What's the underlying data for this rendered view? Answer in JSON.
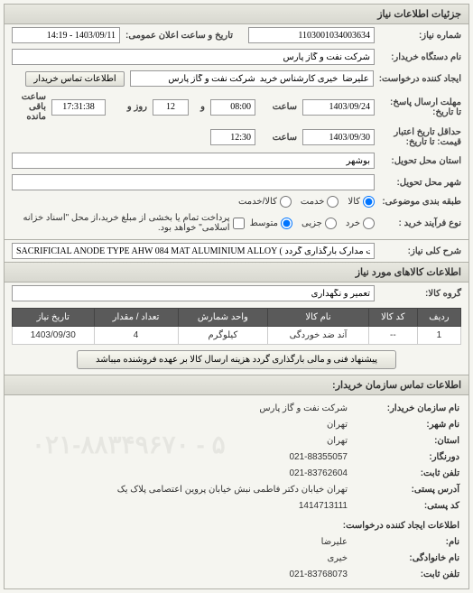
{
  "panel_title": "جزئیات اطلاعات نیاز",
  "fields": {
    "need_number_label": "شماره نیاز:",
    "need_number": "1103001034003634",
    "announce_label": "تاریخ و ساعت اعلان عمومی:",
    "announce_value": "1403/09/11 - 14:19",
    "device_name_label": "نام دستگاه خریدار:",
    "device_name": "شرکت نفت و گاز پارس",
    "creator_label": "ایجاد کننده درخواست:",
    "creator_value": "علیرضا  خیری کارشناس خرید  شرکت نفت و گاز پارس",
    "contact_btn": "اطلاعات تماس خریدار",
    "deadline_label": "مهلت ارسال پاسخ:\nتا تاریخ:",
    "deadline_date": "1403/09/24",
    "saat_label": "ساعت",
    "deadline_time": "08:00",
    "va_label": "و",
    "days_value": "12",
    "rooz_label": "روز و",
    "remaining_time": "17:31:38",
    "remaining_label": "ساعت باقی مانده",
    "price_validity_label": "حداقل تاریخ اعتبار\nقیمت: تا تاریخ:",
    "price_validity_date": "1403/09/30",
    "price_validity_time": "12:30",
    "province_label": "استان محل تحویل:",
    "province_value": "بوشهر",
    "city_label": "شهر محل تحویل:",
    "city_value": "",
    "category_label": "طبقه بندی موضوعی:",
    "radio_kala": "کالا",
    "radio_khedmat": "خدمت",
    "radio_kala_khedmat": "کالا/خدمت",
    "buy_type_label": "نوع فرآیند خرید :",
    "radio_khord": "خرد",
    "radio_jozei": "جزیی",
    "radio_motevasset": "متوسط",
    "payment_note": "پرداخت تمام یا بخشی از مبلغ خرید،از محل \"اسناد خزانه اسلامی\" خواهد بود.",
    "desc_label": "شرح کلی نیاز:",
    "desc_value": "SACRIFICIAL ANODE TYPE AHW 084 MAT ALUMINIUM ALLOY ( طبق لیست پیوست مدارک بارگذاری گردد)"
  },
  "goods_section_title": "اطلاعات کالاهای مورد نیاز",
  "goods_group_label": "گروه کالا:",
  "goods_group_value": "تعمیر و نگهداری",
  "table": {
    "columns": [
      "ردیف",
      "کد کالا",
      "نام کالا",
      "واحد شمارش",
      "تعداد / مقدار",
      "تاریخ نیاز"
    ],
    "rows": [
      [
        "1",
        "--",
        "آند ضد خوردگی",
        "کیلوگرم",
        "4",
        "1403/09/30"
      ]
    ]
  },
  "suggest_btn": "پیشنهاد فنی و مالی بارگذاری گردد هزینه ارسال کالا بر عهده فروشنده میباشد",
  "contact_section_title": "اطلاعات تماس سازمان خریدار:",
  "contact": {
    "org_label": "نام سازمان خریدار:",
    "org_value": "شرکت نفت و گاز پارس",
    "city_label": "نام شهر:",
    "city_value": "تهران",
    "province_label": "استان:",
    "province_value": "تهران",
    "fax_label": "دورنگار:",
    "fax_value": "021-88355057",
    "phone_label": "تلفن ثابت:",
    "phone_value": "021-83762604",
    "address_label": "آدرس پستی:",
    "address_value": "تهران خیابان دکتر فاطمی نبش خیابان پروین اعتصامی پلاک یک",
    "postal_label": "کد پستی:",
    "postal_value": "1414713111",
    "requester_section": "اطلاعات ایجاد کننده درخواست:",
    "name_label": "نام:",
    "name_value": "علیرضا",
    "family_label": "نام خانوادگی:",
    "family_value": "خیری",
    "tel_label": "تلفن ثابت:",
    "tel_value": "021-83768073"
  },
  "watermark": "۰۲۱-۸۸۳۴۹۶۷۰ - ۵"
}
